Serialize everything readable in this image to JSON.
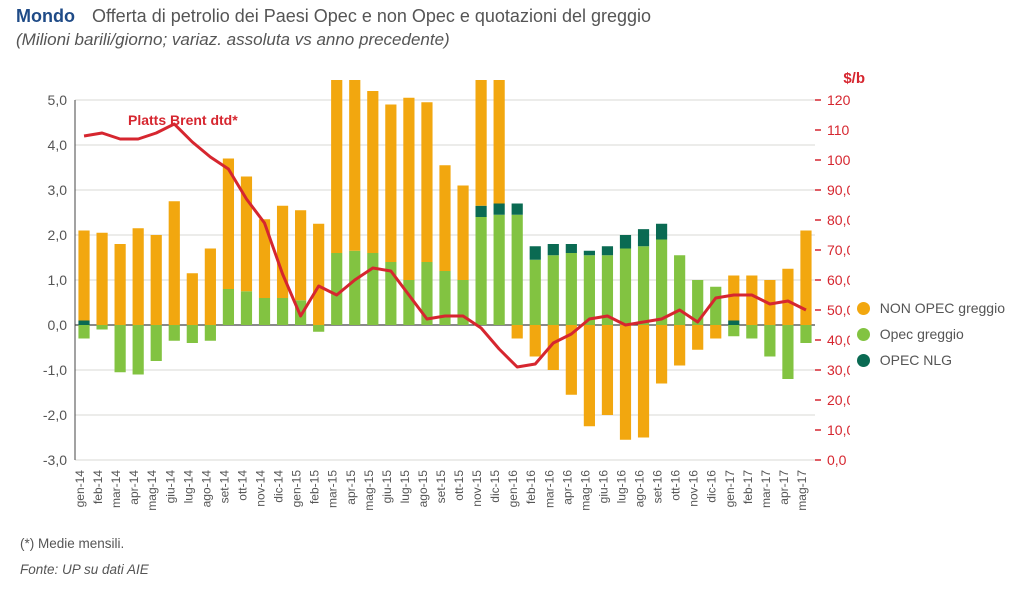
{
  "title_main": "Mondo",
  "title_rest": "Offerta di petrolio dei Paesi Opec e non Opec e quotazioni del greggio",
  "subtitle": "(Milioni barili/giorno;  variaz. assoluta vs anno precedente)",
  "secondary_axis_label": "$/b",
  "brent_label": "Platts Brent dtd*",
  "footnote": "(*)   Medie mensili.",
  "source": "Fonte: UP su dati AIE",
  "legend": [
    {
      "label": "NON OPEC greggio",
      "color": "#f2a70f"
    },
    {
      "label": "Opec greggio",
      "color": "#82c341"
    },
    {
      "label": "OPEC NLG",
      "color": "#0a6a52"
    }
  ],
  "chart": {
    "type": "stacked-bar + line dual-axis",
    "background_color": "#ffffff",
    "grid_color": "#d9d8d4",
    "axis_color": "#444444",
    "line_color": "#d6262f",
    "line_width": 3,
    "left_axis": {
      "min": -3.0,
      "max": 5.0,
      "step": 1.0,
      "label_color": "#555555",
      "fontsize": 14
    },
    "right_axis": {
      "min": 0.0,
      "max": 120.0,
      "step": 10.0,
      "label_color": "#d6262f",
      "fontsize": 14
    },
    "bar_colors": {
      "non_opec": "#f2a70f",
      "opec_greggio": "#82c341",
      "opec_nlg": "#0a6a52"
    },
    "bar_width_ratio": 0.62,
    "categories": [
      "gen-14",
      "feb-14",
      "mar-14",
      "apr-14",
      "mag-14",
      "giu-14",
      "lug-14",
      "ago-14",
      "set-14",
      "ott-14",
      "nov-14",
      "dic-14",
      "gen-15",
      "feb-15",
      "mar-15",
      "apr-15",
      "mag-15",
      "giu-15",
      "lug-15",
      "ago-15",
      "set-15",
      "ott-15",
      "nov-15",
      "dic-15",
      "gen-16",
      "feb-16",
      "mar-16",
      "apr-16",
      "mag-16",
      "giu-16",
      "lug-16",
      "ago-16",
      "set-16",
      "ott-16",
      "nov-16",
      "dic-16",
      "gen-17",
      "feb-17",
      "mar-17",
      "apr-17",
      "mag-17"
    ],
    "series": {
      "non_opec": [
        2.0,
        2.05,
        1.8,
        2.15,
        2.0,
        2.75,
        1.15,
        1.7,
        2.9,
        2.55,
        1.75,
        2.05,
        2.0,
        2.25,
        4.4,
        3.85,
        3.6,
        3.5,
        4.05,
        3.55,
        2.35,
        2.1,
        3.15,
        2.95,
        -0.3,
        -0.7,
        -1.0,
        -1.55,
        -2.25,
        -2.0,
        -2.55,
        -2.5,
        -1.3,
        -0.9,
        -0.55,
        -0.3,
        1.0,
        1.1,
        1.0,
        1.25,
        2.1
      ],
      "opec_greggio": [
        -0.3,
        -0.1,
        -1.05,
        -1.1,
        -0.8,
        -0.35,
        -0.4,
        -0.35,
        0.8,
        0.75,
        0.6,
        0.6,
        0.55,
        -0.15,
        1.6,
        1.65,
        1.6,
        1.4,
        1.0,
        1.4,
        1.2,
        1.0,
        2.4,
        2.45,
        2.45,
        1.45,
        1.55,
        1.6,
        1.55,
        1.55,
        1.7,
        1.75,
        1.9,
        1.55,
        1.0,
        0.85,
        -0.25,
        -0.3,
        -0.7,
        -1.2,
        -0.4
      ],
      "opec_nlg": [
        0.1,
        0.0,
        0.0,
        0.0,
        0.0,
        0.0,
        0.0,
        0.0,
        0.0,
        0.0,
        0.0,
        0.0,
        0.0,
        0.0,
        0.0,
        0.0,
        0.0,
        0.0,
        0.0,
        0.0,
        0.0,
        0.0,
        0.25,
        0.25,
        0.25,
        0.3,
        0.25,
        0.2,
        0.1,
        0.2,
        0.3,
        0.38,
        0.35,
        0.0,
        0.0,
        0.0,
        0.1,
        0.0,
        0.0,
        0.0,
        0.0
      ]
    },
    "line_values": [
      108,
      109,
      107,
      107,
      109,
      112,
      106,
      101,
      97,
      87,
      79,
      62,
      48,
      58,
      55,
      60,
      64,
      63,
      55,
      47,
      48,
      48,
      44,
      37,
      31,
      32,
      39,
      42,
      47,
      48,
      45,
      46,
      47,
      50,
      46,
      54,
      55,
      55,
      52,
      53,
      50
    ]
  }
}
